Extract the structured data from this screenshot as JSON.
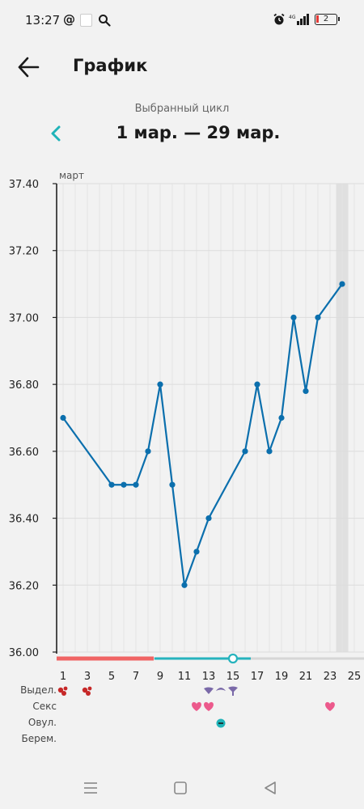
{
  "status_bar": {
    "time": "13:27",
    "at_symbol": "@",
    "battery": "2",
    "icons": [
      "search-icon",
      "alarm-icon",
      "signal-icon",
      "battery-icon"
    ]
  },
  "header": {
    "title": "График",
    "back_icon": "arrow-left-icon"
  },
  "cycle": {
    "caption": "Выбранный цикл",
    "range": "1 мар. — 29 мар.",
    "prev_icon": "chevron-left-icon"
  },
  "chart_data": {
    "type": "line",
    "month_label": "март",
    "y_ticks": [
      "37.40",
      "37.20",
      "37.00",
      "36.80",
      "36.60",
      "36.40",
      "36.20",
      "36.00"
    ],
    "ylim": [
      36.0,
      37.4
    ],
    "x_ticks": [
      "1",
      "3",
      "5",
      "7",
      "9",
      "11",
      "13",
      "15",
      "17",
      "19",
      "21",
      "23",
      "25"
    ],
    "xlim": [
      1,
      25
    ],
    "grid": true,
    "highlighted_day": 24,
    "points": [
      {
        "x": 1,
        "y": 36.7
      },
      {
        "x": 5,
        "y": 36.5
      },
      {
        "x": 6,
        "y": 36.5
      },
      {
        "x": 7,
        "y": 36.5
      },
      {
        "x": 8,
        "y": 36.6
      },
      {
        "x": 9,
        "y": 36.8
      },
      {
        "x": 10,
        "y": 36.5
      },
      {
        "x": 11,
        "y": 36.2
      },
      {
        "x": 12,
        "y": 36.3
      },
      {
        "x": 13,
        "y": 36.4
      },
      {
        "x": 16,
        "y": 36.6
      },
      {
        "x": 17,
        "y": 36.8
      },
      {
        "x": 18,
        "y": 36.6
      },
      {
        "x": 19,
        "y": 36.7
      },
      {
        "x": 20,
        "y": 37.0
      },
      {
        "x": 21,
        "y": 36.78
      },
      {
        "x": 22,
        "y": 37.0
      },
      {
        "x": 24,
        "y": 37.1
      }
    ],
    "period_bar": {
      "from": 1,
      "to": 8,
      "color": "#f06464"
    },
    "fertile_bar": {
      "from": 9,
      "to": 16,
      "color": "#26b3bd"
    },
    "ovulation_day": 15,
    "line_color": "#0b6fad"
  },
  "rows": {
    "bleeding": {
      "label": "Выдел.",
      "days": [
        1,
        3
      ],
      "icon": "blood-drops-icon",
      "color": "#c62828"
    },
    "sex": {
      "label": "Секс",
      "days": [
        12,
        13,
        23
      ],
      "icon": "heart-icon",
      "color": "#ec5a8c"
    },
    "ovulation": {
      "label": "Овул.",
      "days": [
        14
      ],
      "icon": "ovulation-icon",
      "color": "#1fb3b8"
    },
    "pregnancy": {
      "label": "Берем.",
      "days": []
    },
    "discharge_days": [
      13,
      14,
      15
    ],
    "discharge_icon": "discharge-icon",
    "discharge_color": "#7a69a8"
  },
  "nav": {
    "icons": [
      "menu-icon",
      "home-icon",
      "back-triangle-icon"
    ]
  }
}
